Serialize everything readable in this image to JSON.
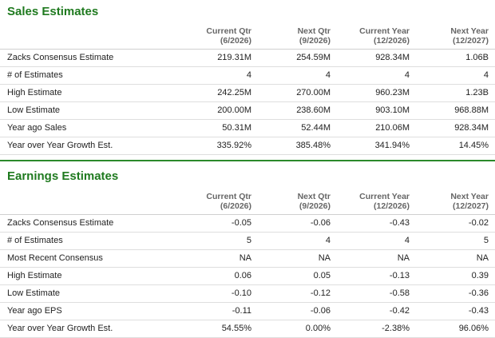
{
  "sales": {
    "title": "Sales Estimates",
    "columns": [
      {
        "line1": "Current Qtr",
        "line2": "(6/2026)"
      },
      {
        "line1": "Next Qtr",
        "line2": "(9/2026)"
      },
      {
        "line1": "Current Year",
        "line2": "(12/2026)"
      },
      {
        "line1": "Next Year",
        "line2": "(12/2027)"
      }
    ],
    "rows": [
      {
        "label": "Zacks Consensus Estimate",
        "values": [
          "219.31M",
          "254.59M",
          "928.34M",
          "1.06B"
        ]
      },
      {
        "label": "# of Estimates",
        "values": [
          "4",
          "4",
          "4",
          "4"
        ]
      },
      {
        "label": "High Estimate",
        "values": [
          "242.25M",
          "270.00M",
          "960.23M",
          "1.23B"
        ]
      },
      {
        "label": "Low Estimate",
        "values": [
          "200.00M",
          "238.60M",
          "903.10M",
          "968.88M"
        ]
      },
      {
        "label": "Year ago Sales",
        "values": [
          "50.31M",
          "52.44M",
          "210.06M",
          "928.34M"
        ]
      },
      {
        "label": "Year over Year Growth Est.",
        "values": [
          "335.92%",
          "385.48%",
          "341.94%",
          "14.45%"
        ]
      }
    ]
  },
  "earnings": {
    "title": "Earnings Estimates",
    "columns": [
      {
        "line1": "Current Qtr",
        "line2": "(6/2026)"
      },
      {
        "line1": "Next Qtr",
        "line2": "(9/2026)"
      },
      {
        "line1": "Current Year",
        "line2": "(12/2026)"
      },
      {
        "line1": "Next Year",
        "line2": "(12/2027)"
      }
    ],
    "rows": [
      {
        "label": "Zacks Consensus Estimate",
        "values": [
          "-0.05",
          "-0.06",
          "-0.43",
          "-0.02"
        ]
      },
      {
        "label": "# of Estimates",
        "values": [
          "5",
          "4",
          "4",
          "5"
        ]
      },
      {
        "label": "Most Recent Consensus",
        "values": [
          "NA",
          "NA",
          "NA",
          "NA"
        ]
      },
      {
        "label": "High Estimate",
        "values": [
          "0.06",
          "0.05",
          "-0.13",
          "0.39"
        ]
      },
      {
        "label": "Low Estimate",
        "values": [
          "-0.10",
          "-0.12",
          "-0.58",
          "-0.36"
        ]
      },
      {
        "label": "Year ago EPS",
        "values": [
          "-0.11",
          "-0.06",
          "-0.42",
          "-0.43"
        ]
      },
      {
        "label": "Year over Year Growth Est.",
        "values": [
          "54.55%",
          "0.00%",
          "-2.38%",
          "96.06%"
        ]
      }
    ]
  }
}
